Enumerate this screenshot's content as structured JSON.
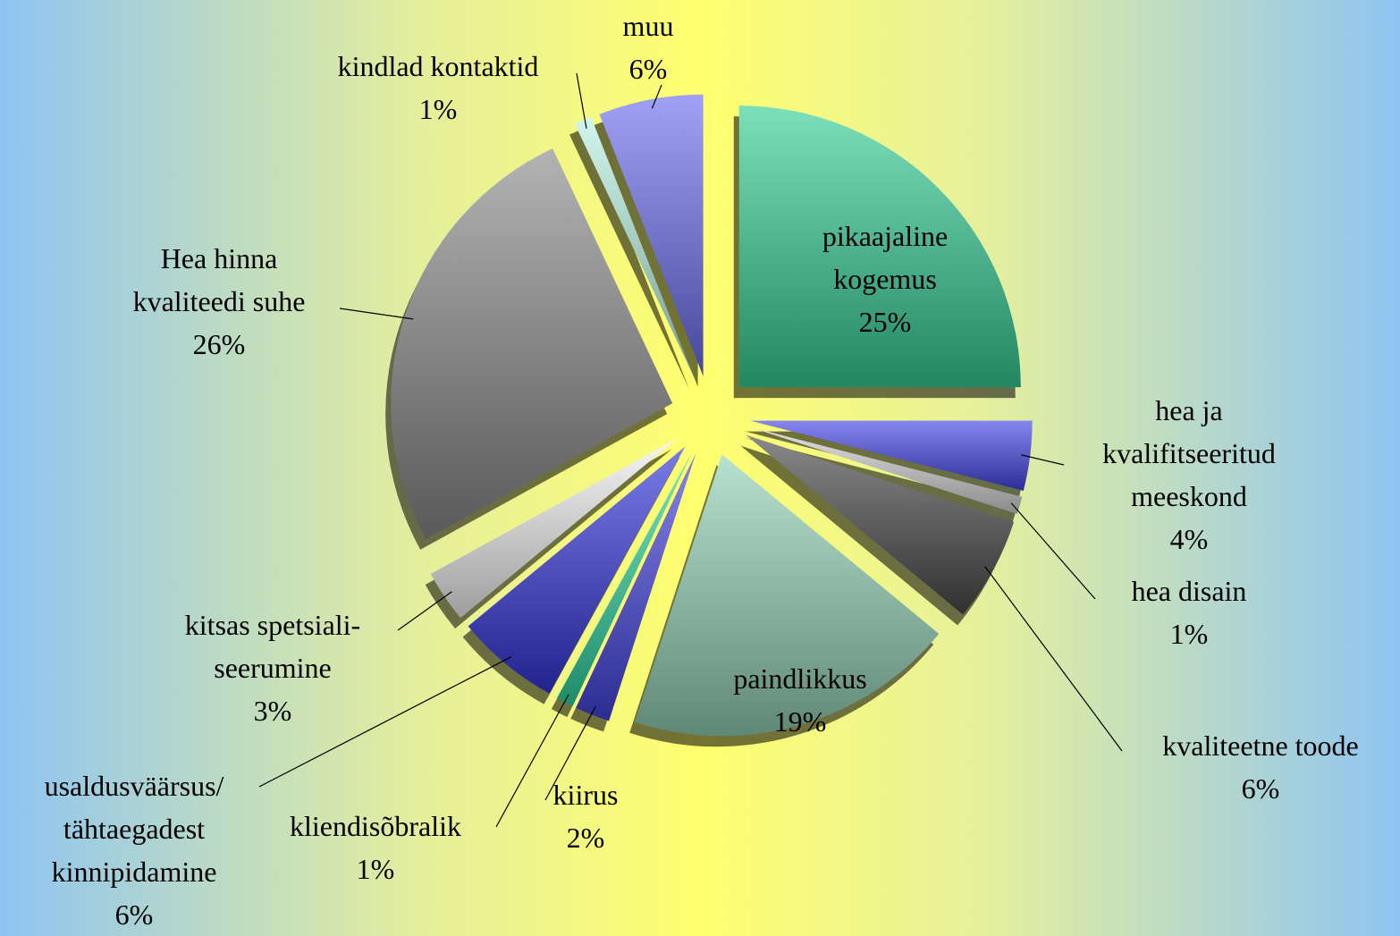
{
  "chart_data": {
    "type": "pie",
    "categories": [
      "pikaajaline\nkogemus",
      "hea ja\nkvalifitseeritud\nmeeskond",
      "hea disain",
      "kvaliteetne toode",
      "paindlikkus",
      "kiirus",
      "kliendisõbralik",
      "usaldusväärsus/\ntähtaegadest\nkinnipidamine",
      "kitsas spetsiali-\nseerumine",
      "Hea hinna\nkvaliteedi suhe",
      "kindlad kontaktid",
      "muu"
    ],
    "values": [
      25,
      4,
      1,
      6,
      19,
      2,
      1,
      6,
      3,
      26,
      1,
      6
    ],
    "value_labels": [
      "25%",
      "4%",
      "1%",
      "6%",
      "19%",
      "2%",
      "1%",
      "6%",
      "3%",
      "26%",
      "1%",
      "6%"
    ],
    "colors": [
      "#36cf98",
      "#4545e6",
      "#d4d4d4",
      "#4a4a4a",
      "#93d1b6",
      "#4343e0",
      "#2fd6a4",
      "#3535dc",
      "#f2f2f2",
      "#8a8a8a",
      "#b8f2e2",
      "#6d6df0"
    ]
  }
}
